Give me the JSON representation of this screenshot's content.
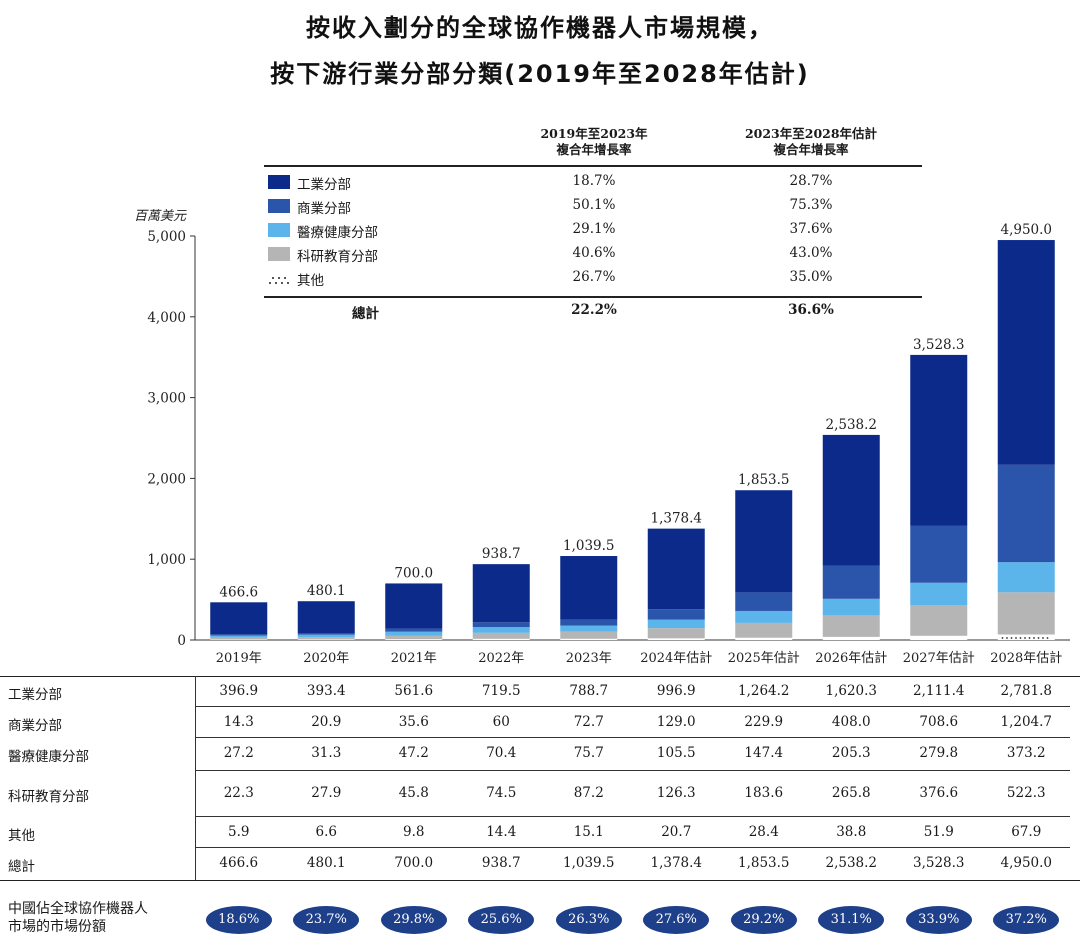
{
  "title_line1": "按收入劃分的全球協作機器人市場規模，",
  "title_line2": "按下游行業分部分類(2019年至2028年估計)",
  "legend": {
    "col1_header_line1": "2019年至2023年",
    "col1_header_line2": "複合年增長率",
    "col2_header_line1": "2023年至2028年估計",
    "col2_header_line2": "複合年增長率",
    "rows": [
      {
        "name": "工業分部",
        "cagr1": "18.7%",
        "cagr2": "28.7%",
        "color": "#0b2a8a"
      },
      {
        "name": "商業分部",
        "cagr1": "50.1%",
        "cagr2": "75.3%",
        "color": "#2a55aa"
      },
      {
        "name": "醫療健康分部",
        "cagr1": "29.1%",
        "cagr2": "37.6%",
        "color": "#5bb4ea"
      },
      {
        "name": "科研教育分部",
        "cagr1": "40.6%",
        "cagr2": "43.0%",
        "color": "#b5b5b5"
      },
      {
        "name": "其他",
        "cagr1": "26.7%",
        "cagr2": "35.0%",
        "color": "#ffffff"
      }
    ],
    "total": {
      "name": "總計",
      "cagr1": "22.2%",
      "cagr2": "36.6%"
    }
  },
  "chart_data": {
    "type": "bar",
    "stacked": true,
    "ylabel": "百萬美元",
    "ylim": [
      0,
      5000
    ],
    "yticks": [
      "0",
      "1,000",
      "2,000",
      "3,000",
      "4,000",
      "5,000"
    ],
    "categories": [
      "2019年",
      "2020年",
      "2021年",
      "2022年",
      "2023年",
      "2024年估計",
      "2025年估計",
      "2026年估計",
      "2027年估計",
      "2028年估計"
    ],
    "series": [
      {
        "name": "其他",
        "values": [
          5.9,
          6.6,
          9.8,
          14.4,
          15.1,
          20.7,
          28.4,
          38.8,
          51.9,
          67.9
        ],
        "color": "#ffffff"
      },
      {
        "name": "科研教育分部",
        "values": [
          22.3,
          27.9,
          45.8,
          74.5,
          87.2,
          126.3,
          183.6,
          265.8,
          376.6,
          522.3
        ],
        "color": "#b5b5b5"
      },
      {
        "name": "醫療健康分部",
        "values": [
          27.2,
          31.3,
          47.2,
          70.4,
          75.7,
          105.5,
          147.4,
          205.3,
          279.8,
          373.2
        ],
        "color": "#5bb4ea"
      },
      {
        "name": "商業分部",
        "values": [
          14.3,
          20.9,
          35.6,
          60,
          72.7,
          129.0,
          229.9,
          408.0,
          708.6,
          1204.7
        ],
        "color": "#2a55aa"
      },
      {
        "name": "工業分部",
        "values": [
          396.9,
          393.4,
          561.6,
          719.5,
          788.7,
          996.9,
          1264.2,
          1620.3,
          2111.4,
          2781.8
        ],
        "color": "#0b2a8a"
      }
    ],
    "totals": [
      466.6,
      480.1,
      700.0,
      938.7,
      1039.5,
      1378.4,
      1853.5,
      2538.2,
      3528.3,
      4950.0
    ],
    "total_labels": [
      "466.6",
      "480.1",
      "700.0",
      "938.7",
      "1,039.5",
      "1,378.4",
      "1,853.5",
      "2,538.2",
      "3,528.3",
      "4,950.0"
    ]
  },
  "table": {
    "rows": [
      {
        "label": "工業分部",
        "values": [
          "396.9",
          "393.4",
          "561.6",
          "719.5",
          "788.7",
          "996.9",
          "1,264.2",
          "1,620.3",
          "2,111.4",
          "2,781.8"
        ]
      },
      {
        "label": "商業分部",
        "values": [
          "14.3",
          "20.9",
          "35.6",
          "60",
          "72.7",
          "129.0",
          "229.9",
          "408.0",
          "708.6",
          "1,204.7"
        ]
      },
      {
        "label": "醫療健康分部",
        "values": [
          "27.2",
          "31.3",
          "47.2",
          "70.4",
          "75.7",
          "105.5",
          "147.4",
          "205.3",
          "279.8",
          "373.2"
        ]
      },
      {
        "label": "科研教育分部",
        "values": [
          "22.3",
          "27.9",
          "45.8",
          "74.5",
          "87.2",
          "126.3",
          "183.6",
          "265.8",
          "376.6",
          "522.3"
        ]
      },
      {
        "label": "其他",
        "values": [
          "5.9",
          "6.6",
          "9.8",
          "14.4",
          "15.1",
          "20.7",
          "28.4",
          "38.8",
          "51.9",
          "67.9"
        ]
      },
      {
        "label": "總計",
        "values": [
          "466.6",
          "480.1",
          "700.0",
          "938.7",
          "1,039.5",
          "1,378.4",
          "1,853.5",
          "2,538.2",
          "3,528.3",
          "4,950.0"
        ]
      }
    ]
  },
  "share": {
    "label_line1": "中國佔全球協作機器人",
    "label_line2": "市場的市場份額",
    "values": [
      "18.6%",
      "23.7%",
      "29.8%",
      "25.6%",
      "26.3%",
      "27.6%",
      "29.2%",
      "31.1%",
      "33.9%",
      "37.2%"
    ],
    "color": "#1e3f8a"
  }
}
